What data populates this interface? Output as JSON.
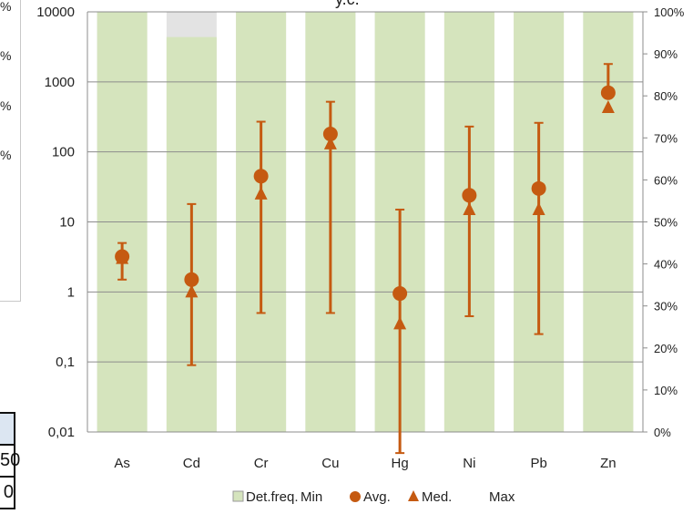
{
  "left_fragment": {
    "labels": [
      "%",
      "%",
      "%",
      "%"
    ],
    "table_cells": [
      "",
      "50",
      "0"
    ]
  },
  "title_fragment": "y.c.",
  "chart_data": {
    "type": "bar+errorbar",
    "categories": [
      "As",
      "Cd",
      "Cr",
      "Cu",
      "Hg",
      "Ni",
      "Pb",
      "Zn"
    ],
    "left_axis": {
      "scale": "log",
      "ylim": [
        0.01,
        10000
      ],
      "tick_labels": [
        "0,01",
        "0,1",
        "1",
        "10",
        "100",
        "1000",
        "10000"
      ],
      "tick_values": [
        0.01,
        0.1,
        1,
        10,
        100,
        1000,
        10000
      ]
    },
    "right_axis": {
      "ylim": [
        0,
        100
      ],
      "tick_labels": [
        "0%",
        "10%",
        "20%",
        "30%",
        "40%",
        "50%",
        "60%",
        "70%",
        "80%",
        "90%",
        "100%"
      ]
    },
    "det_freq_percent": [
      100,
      94,
      100,
      100,
      100,
      100,
      100,
      100
    ],
    "min": [
      1.5,
      0.09,
      0.5,
      0.5,
      0.005,
      0.45,
      0.25,
      700
    ],
    "avg": [
      3.2,
      1.5,
      45,
      180,
      0.95,
      24,
      30,
      700
    ],
    "med": [
      3.0,
      1.0,
      25,
      130,
      0.35,
      15,
      15,
      430
    ],
    "max": [
      5.0,
      18,
      270,
      520,
      15,
      230,
      260,
      1800
    ],
    "legend": [
      "Det.freq.",
      "Min",
      "Avg.",
      "Med.",
      "Max"
    ],
    "legend_position": "bottom",
    "grid": true,
    "colors": {
      "bar": "#d5e4bd",
      "bar_empty": "#e3e3e3",
      "marker": "#c55a11",
      "grid": "#8c8c8c"
    }
  }
}
